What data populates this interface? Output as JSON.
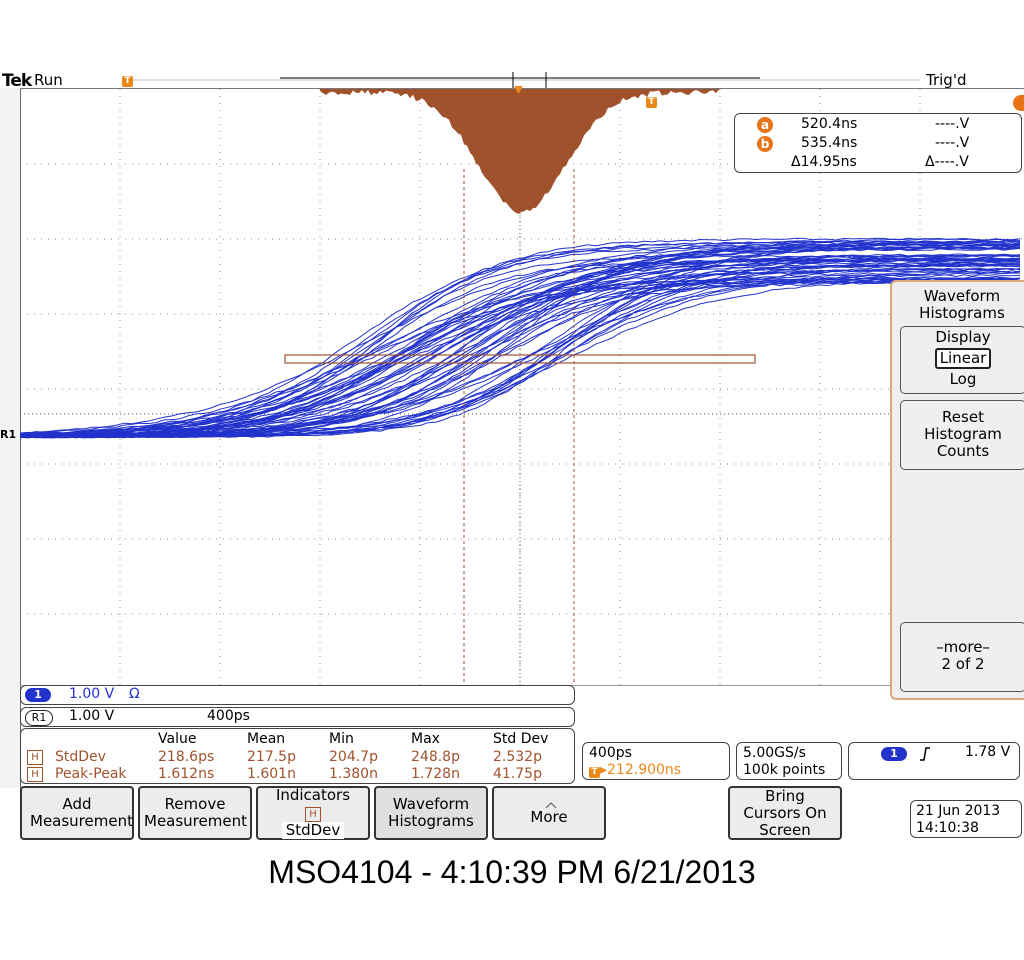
{
  "status": {
    "brand": "Tek",
    "run_state": "Run",
    "trigger_state": "Trig'd",
    "trigger_marker": "T"
  },
  "cursors": {
    "a_label": "a",
    "a_time": "520.4ns",
    "a_volt": "----.V",
    "b_label": "b",
    "b_time": "535.4ns",
    "b_volt": "----.V",
    "delta_time": "Δ14.95ns",
    "delta_volt": "Δ----.V"
  },
  "side_menu": {
    "title": "Waveform Histograms",
    "display_label": "Display",
    "display_selected": "Linear",
    "display_other": "Log",
    "reset_label": "Reset Histogram Counts",
    "more_label": "–more–",
    "more_page": "2 of 2"
  },
  "channels": {
    "ch1": {
      "badge": "1",
      "scale": "1.00 V",
      "coupling_icon": "Ω"
    },
    "ref1": {
      "badge": "R1",
      "scale": "1.00 V",
      "timebase": "400ps"
    }
  },
  "measurements": {
    "headers": [
      "Value",
      "Mean",
      "Min",
      "Max",
      "Std Dev"
    ],
    "rows": [
      {
        "tag": "H",
        "name": "StdDev",
        "values": [
          "218.6ps",
          "217.5p",
          "204.7p",
          "248.8p",
          "2.532p"
        ]
      },
      {
        "tag": "H",
        "name": "Peak-Peak",
        "values": [
          "1.612ns",
          "1.601n",
          "1.380n",
          "1.728n",
          "41.75p"
        ]
      }
    ]
  },
  "horizontal": {
    "scale": "400ps",
    "position": "▸212.900ns"
  },
  "acquisition": {
    "rate": "5.00GS/s",
    "points": "100k points"
  },
  "trigger": {
    "channel": "1",
    "slope_icon": "rising-edge",
    "level": "1.78 V"
  },
  "datetime": {
    "date": "21 Jun  2013",
    "time": "14:10:38"
  },
  "buttons": {
    "add": "Add Measurement",
    "remove": "Remove Measurement",
    "indicators": "Indicators",
    "indicators_tag": "H",
    "indicators_value": "StdDev",
    "histograms": "Waveform Histograms",
    "more": "More",
    "cursors": "Bring Cursors On Screen"
  },
  "caption": "MSO4104 - 4:10:39 PM   6/21/2013",
  "colors": {
    "trace": "#2233cc",
    "histogram": "#a0522d",
    "cursor": "#e8741a",
    "accent": "#e8891a"
  }
}
